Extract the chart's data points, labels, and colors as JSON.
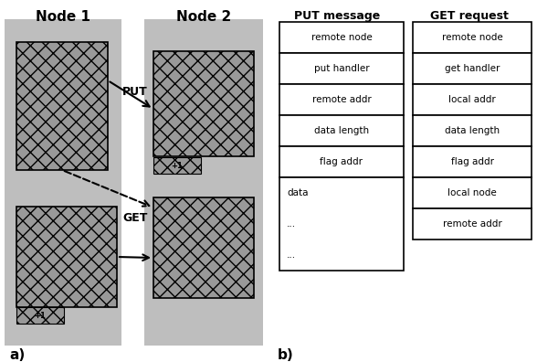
{
  "fig_width": 5.88,
  "fig_height": 3.96,
  "bg_color": "#ffffff",
  "node1_label": "Node 1",
  "node2_label": "Node 2",
  "label_a": "a)",
  "label_b": "b)",
  "put_label": "PUT",
  "get_label": "GET",
  "put_message_label": "PUT message",
  "get_request_label": "GET request",
  "put_message_rows": [
    "remote node",
    "put handler",
    "remote addr",
    "data length",
    "flag addr",
    "data",
    "...",
    "..."
  ],
  "get_request_rows": [
    "remote node",
    "get handler",
    "local addr",
    "data length",
    "flag addr",
    "local node",
    "remote addr"
  ],
  "node_bg": "#bebebe",
  "block_fc": "#888888",
  "flag_text": "+1"
}
